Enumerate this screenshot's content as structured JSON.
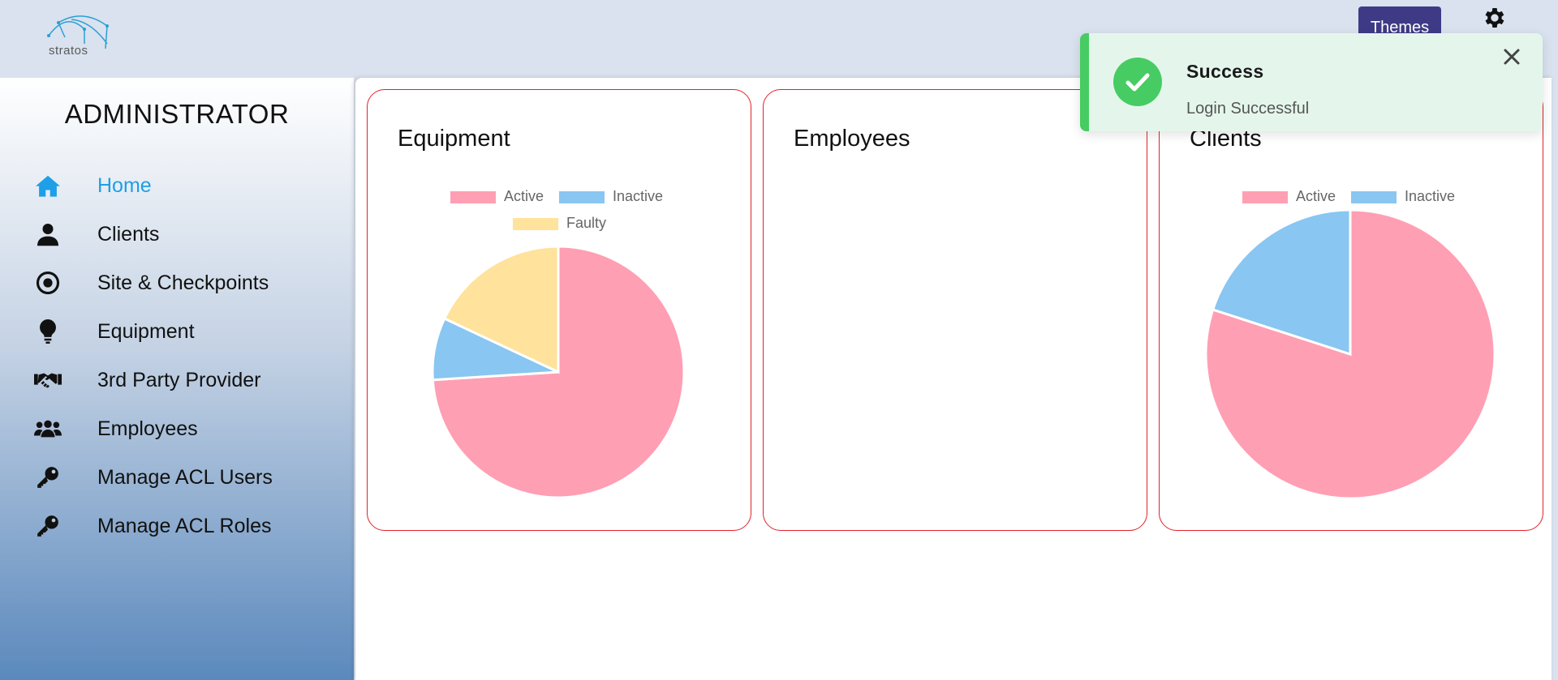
{
  "brand": {
    "logo_text": "stratos"
  },
  "header": {
    "themes_label": "Themes",
    "settings_icon": "gear-icon"
  },
  "sidebar": {
    "role_title": "ADMINISTRATOR",
    "items": [
      {
        "label": "Home",
        "icon": "home-icon",
        "active": true
      },
      {
        "label": "Clients",
        "icon": "user-icon",
        "active": false
      },
      {
        "label": "Site & Checkpoints",
        "icon": "target-icon",
        "active": false
      },
      {
        "label": "Equipment",
        "icon": "lightbulb-icon",
        "active": false
      },
      {
        "label": "3rd Party Provider",
        "icon": "handshake-icon",
        "active": false
      },
      {
        "label": "Employees",
        "icon": "users-icon",
        "active": false
      },
      {
        "label": "Manage ACL Users",
        "icon": "key-icon",
        "active": false
      },
      {
        "label": "Manage ACL Roles",
        "icon": "key-icon",
        "active": false
      }
    ]
  },
  "cards": {
    "equipment": {
      "title": "Equipment"
    },
    "employees": {
      "title": "Employees"
    },
    "clients": {
      "title": "Clients"
    }
  },
  "colors": {
    "active": "#ff9fb3",
    "inactive": "#89c6f1",
    "faulty": "#ffe29b",
    "accent": "#1e9fe8",
    "card_border": "#e2222b",
    "toast_green": "#46cc62"
  },
  "toast": {
    "title": "Success",
    "message": "Login Successful",
    "close_icon": "close-icon",
    "status_icon": "check-circle-icon"
  },
  "chart_data": [
    {
      "type": "pie",
      "title": "Equipment",
      "categories": [
        "Active",
        "Inactive",
        "Faulty"
      ],
      "values": [
        74,
        8,
        18
      ],
      "legend": "top"
    },
    {
      "type": "pie",
      "title": "Employees",
      "categories": [],
      "values": []
    },
    {
      "type": "pie",
      "title": "Clients",
      "categories": [
        "Active",
        "Inactive"
      ],
      "values": [
        80,
        20
      ],
      "legend": "top"
    }
  ]
}
